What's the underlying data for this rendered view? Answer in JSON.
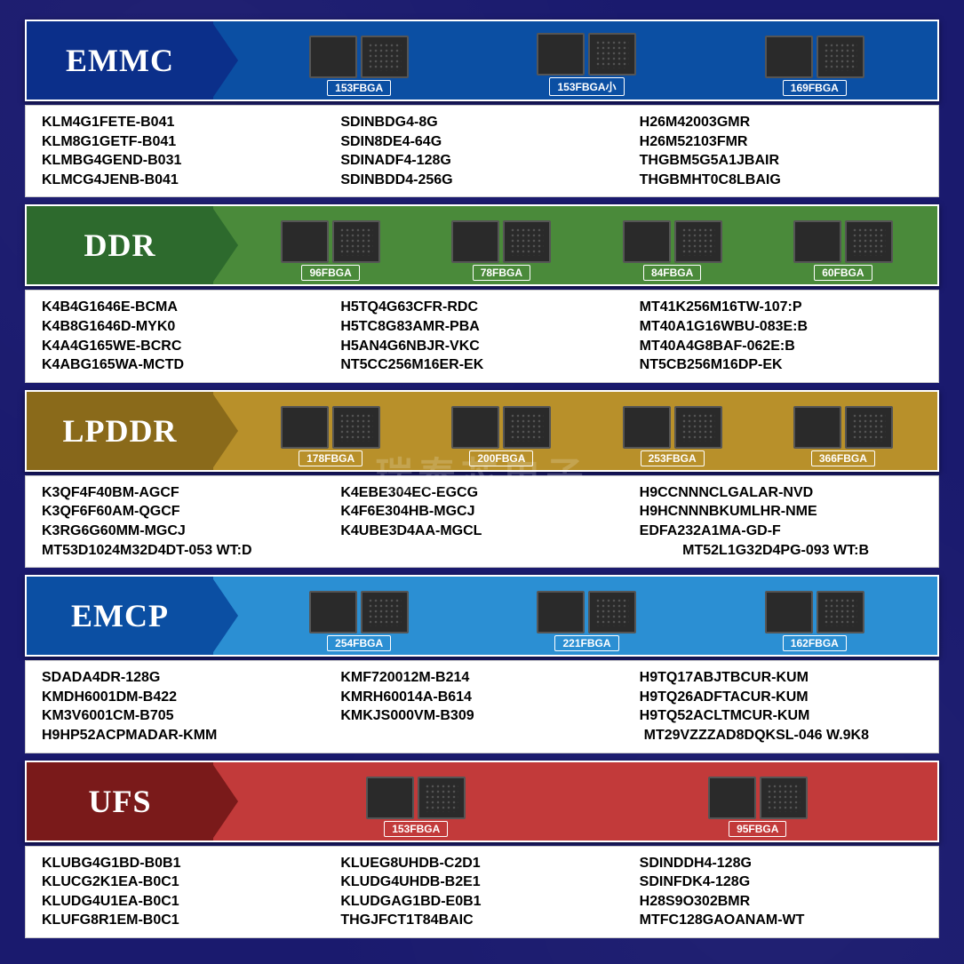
{
  "background_color": "#1a1a6e",
  "watermark_text": "瑞泰芯电子",
  "sections": [
    {
      "id": "emmc",
      "label": "EMMC",
      "label_bg": "#0b2f8a",
      "arrow_color": "#0b2f8a",
      "banner_bg": "#0b4fa3",
      "tag_bg": "#0b4fa3",
      "chips": [
        {
          "tag": "153FBGA"
        },
        {
          "tag": "153FBGA小"
        },
        {
          "tag": "169FBGA"
        }
      ],
      "parts": {
        "cols": [
          [
            "KLM4G1FETE-B041",
            "KLM8G1GETF-B041",
            "KLMBG4GEND-B031",
            "KLMCG4JENB-B041"
          ],
          [
            "SDINBDG4-8G",
            "SDIN8DE4-64G",
            "SDINADF4-128G",
            "SDINBDD4-256G"
          ],
          [
            "H26M42003GMR",
            "H26M52103FMR",
            "THGBM5G5A1JBAIR",
            "THGBMHT0C8LBAIG"
          ]
        ]
      }
    },
    {
      "id": "ddr",
      "label": "DDR",
      "label_bg": "#2d6a2d",
      "arrow_color": "#2d6a2d",
      "banner_bg": "#4a8a3a",
      "tag_bg": "#4a8a3a",
      "chips": [
        {
          "tag": "96FBGA"
        },
        {
          "tag": "78FBGA"
        },
        {
          "tag": "84FBGA"
        },
        {
          "tag": "60FBGA"
        }
      ],
      "parts": {
        "cols": [
          [
            "K4B4G1646E-BCMA",
            "K4B8G1646D-MYK0",
            "K4A4G165WE-BCRC",
            "K4ABG165WA-MCTD"
          ],
          [
            "H5TQ4G63CFR-RDC",
            "H5TC8G83AMR-PBA",
            "H5AN4G6NBJR-VKC",
            "NT5CC256M16ER-EK"
          ],
          [
            "MT41K256M16TW-107:P",
            "MT40A1G16WBU-083E:B",
            "MT40A4G8BAF-062E:B",
            "NT5CB256M16DP-EK"
          ]
        ]
      }
    },
    {
      "id": "lpddr",
      "label": "LPDDR",
      "label_bg": "#8a6a1a",
      "arrow_color": "#8a6a1a",
      "banner_bg": "#b8902a",
      "tag_bg": "#b8902a",
      "chips": [
        {
          "tag": "178FBGA"
        },
        {
          "tag": "200FBGA"
        },
        {
          "tag": "253FBGA"
        },
        {
          "tag": "366FBGA"
        }
      ],
      "parts": {
        "cols": [
          [
            "K3QF4F40BM-AGCF",
            "K3QF6F60AM-QGCF",
            "K3RG6G60MM-MGCJ"
          ],
          [
            "K4EBE304EC-EGCG",
            "K4F6E304HB-MGCJ",
            "K4UBE3D4AA-MGCL"
          ],
          [
            "H9CCNNNCLGALAR-NVD",
            "H9HCNNNBKUMLHR-NME",
            "EDFA232A1MA-GD-F"
          ]
        ],
        "extra": [
          "MT53D1024M32D4DT-053 WT:D",
          "MT52L1G32D4PG-093 WT:B"
        ]
      }
    },
    {
      "id": "emcp",
      "label": "EMCP",
      "label_bg": "#0b4fa3",
      "arrow_color": "#0b4fa3",
      "banner_bg": "#2b8fd3",
      "tag_bg": "#2b8fd3",
      "chips": [
        {
          "tag": "254FBGA"
        },
        {
          "tag": "221FBGA"
        },
        {
          "tag": "162FBGA"
        }
      ],
      "parts": {
        "cols": [
          [
            "SDADA4DR-128G",
            "KMDH6001DM-B422",
            "KM3V6001CM-B705"
          ],
          [
            "KMF720012M-B214",
            "KMRH60014A-B614",
            "KMKJS000VM-B309"
          ],
          [
            "H9TQ17ABJTBCUR-KUM",
            "H9TQ26ADFTACUR-KUM",
            "H9TQ52ACLTMCUR-KUM"
          ]
        ],
        "extra": [
          "H9HP52ACPMADAR-KMM",
          "MT29VZZZAD8DQKSL-046 W.9K8"
        ]
      }
    },
    {
      "id": "ufs",
      "label": "UFS",
      "label_bg": "#7a1a1a",
      "arrow_color": "#7a1a1a",
      "banner_bg": "#c23a3a",
      "tag_bg": "#c23a3a",
      "chips": [
        {
          "tag": "153FBGA"
        },
        {
          "tag": "95FBGA"
        }
      ],
      "parts": {
        "cols": [
          [
            "KLUBG4G1BD-B0B1",
            "KLUCG2K1EA-B0C1",
            "KLUDG4U1EA-B0C1",
            "KLUFG8R1EM-B0C1"
          ],
          [
            "KLUEG8UHDB-C2D1",
            "KLUDG4UHDB-B2E1",
            "KLUDGAG1BD-E0B1",
            "THGJFCT1T84BAIC"
          ],
          [
            "SDINDDH4-128G",
            "SDINFDK4-128G",
            "H28S9O302BMR",
            "MTFC128GAOANAM-WT"
          ]
        ]
      }
    }
  ]
}
